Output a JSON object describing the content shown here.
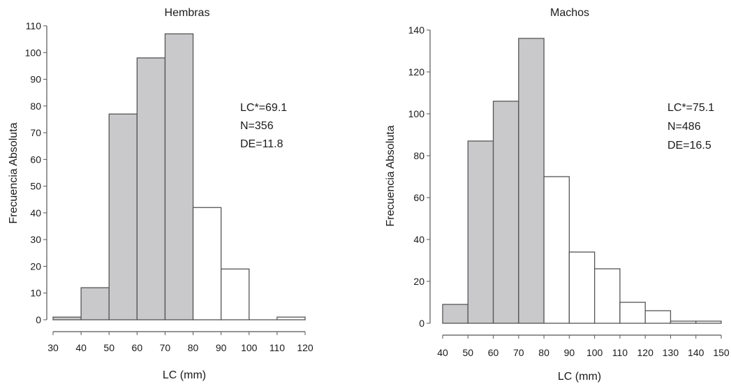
{
  "colors": {
    "shaded_bar": "#c9c9cb",
    "open_bar": "#ffffff",
    "outline": "#555555",
    "text": "#1a1a1a"
  },
  "chart_data": [
    {
      "type": "bar",
      "title": "Hembras",
      "xlabel": "LC (mm)",
      "ylabel": "Frecuencia Absoluta",
      "x_ticks": [
        30,
        40,
        50,
        60,
        70,
        80,
        90,
        100,
        110,
        120
      ],
      "y_ticks": [
        0,
        10,
        20,
        30,
        40,
        50,
        60,
        70,
        80,
        90,
        100,
        110
      ],
      "xlim": [
        30,
        120
      ],
      "ylim": [
        0,
        110
      ],
      "bins": [
        {
          "from": 30,
          "to": 40,
          "value": 1,
          "shaded": true
        },
        {
          "from": 40,
          "to": 50,
          "value": 12,
          "shaded": true
        },
        {
          "from": 50,
          "to": 60,
          "value": 77,
          "shaded": true
        },
        {
          "from": 60,
          "to": 70,
          "value": 98,
          "shaded": true
        },
        {
          "from": 70,
          "to": 80,
          "value": 107,
          "shaded": true
        },
        {
          "from": 80,
          "to": 90,
          "value": 42,
          "shaded": false
        },
        {
          "from": 90,
          "to": 100,
          "value": 19,
          "shaded": false
        },
        {
          "from": 100,
          "to": 110,
          "value": 0,
          "shaded": false
        },
        {
          "from": 110,
          "to": 120,
          "value": 1,
          "shaded": false
        }
      ],
      "annotations": [
        "LC*=69.1",
        "N=356",
        "DE=11.8"
      ]
    },
    {
      "type": "bar",
      "title": "Machos",
      "xlabel": "LC (mm)",
      "ylabel": "Frecuencia Absoluta",
      "x_ticks": [
        40,
        50,
        60,
        70,
        80,
        90,
        100,
        110,
        120,
        130,
        140,
        150
      ],
      "y_ticks": [
        0,
        20,
        40,
        60,
        80,
        100,
        120,
        140
      ],
      "xlim": [
        40,
        150
      ],
      "ylim": [
        0,
        140
      ],
      "bins": [
        {
          "from": 40,
          "to": 50,
          "value": 9,
          "shaded": true
        },
        {
          "from": 50,
          "to": 60,
          "value": 87,
          "shaded": true
        },
        {
          "from": 60,
          "to": 70,
          "value": 106,
          "shaded": true
        },
        {
          "from": 70,
          "to": 80,
          "value": 136,
          "shaded": true
        },
        {
          "from": 80,
          "to": 90,
          "value": 70,
          "shaded": false
        },
        {
          "from": 90,
          "to": 100,
          "value": 34,
          "shaded": false
        },
        {
          "from": 100,
          "to": 110,
          "value": 26,
          "shaded": false
        },
        {
          "from": 110,
          "to": 120,
          "value": 10,
          "shaded": false
        },
        {
          "from": 120,
          "to": 130,
          "value": 6,
          "shaded": false
        },
        {
          "from": 130,
          "to": 140,
          "value": 1,
          "shaded": false
        },
        {
          "from": 140,
          "to": 150,
          "value": 1,
          "shaded": false
        }
      ],
      "annotations": [
        "LC*=75.1",
        "N=486",
        "DE=16.5"
      ]
    }
  ]
}
